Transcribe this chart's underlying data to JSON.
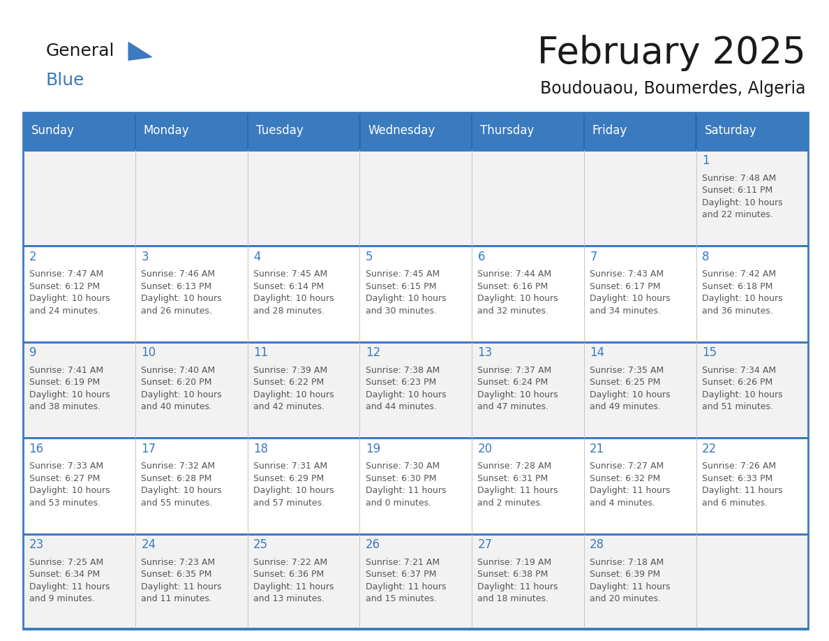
{
  "title": "February 2025",
  "subtitle": "Boudouaou, Boumerdes, Algeria",
  "header_bg_color": "#3a7abf",
  "header_text_color": "#ffffff",
  "cell_bg_even": "#f2f2f2",
  "cell_bg_odd": "#ffffff",
  "day_number_color": "#3a7abf",
  "cell_text_color": "#555555",
  "border_color": "#3a7abf",
  "grid_color": "#c0c0c0",
  "days_of_week": [
    "Sunday",
    "Monday",
    "Tuesday",
    "Wednesday",
    "Thursday",
    "Friday",
    "Saturday"
  ],
  "weeks": [
    [
      {
        "day": null,
        "info": null
      },
      {
        "day": null,
        "info": null
      },
      {
        "day": null,
        "info": null
      },
      {
        "day": null,
        "info": null
      },
      {
        "day": null,
        "info": null
      },
      {
        "day": null,
        "info": null
      },
      {
        "day": 1,
        "info": "Sunrise: 7:48 AM\nSunset: 6:11 PM\nDaylight: 10 hours\nand 22 minutes."
      }
    ],
    [
      {
        "day": 2,
        "info": "Sunrise: 7:47 AM\nSunset: 6:12 PM\nDaylight: 10 hours\nand 24 minutes."
      },
      {
        "day": 3,
        "info": "Sunrise: 7:46 AM\nSunset: 6:13 PM\nDaylight: 10 hours\nand 26 minutes."
      },
      {
        "day": 4,
        "info": "Sunrise: 7:45 AM\nSunset: 6:14 PM\nDaylight: 10 hours\nand 28 minutes."
      },
      {
        "day": 5,
        "info": "Sunrise: 7:45 AM\nSunset: 6:15 PM\nDaylight: 10 hours\nand 30 minutes."
      },
      {
        "day": 6,
        "info": "Sunrise: 7:44 AM\nSunset: 6:16 PM\nDaylight: 10 hours\nand 32 minutes."
      },
      {
        "day": 7,
        "info": "Sunrise: 7:43 AM\nSunset: 6:17 PM\nDaylight: 10 hours\nand 34 minutes."
      },
      {
        "day": 8,
        "info": "Sunrise: 7:42 AM\nSunset: 6:18 PM\nDaylight: 10 hours\nand 36 minutes."
      }
    ],
    [
      {
        "day": 9,
        "info": "Sunrise: 7:41 AM\nSunset: 6:19 PM\nDaylight: 10 hours\nand 38 minutes."
      },
      {
        "day": 10,
        "info": "Sunrise: 7:40 AM\nSunset: 6:20 PM\nDaylight: 10 hours\nand 40 minutes."
      },
      {
        "day": 11,
        "info": "Sunrise: 7:39 AM\nSunset: 6:22 PM\nDaylight: 10 hours\nand 42 minutes."
      },
      {
        "day": 12,
        "info": "Sunrise: 7:38 AM\nSunset: 6:23 PM\nDaylight: 10 hours\nand 44 minutes."
      },
      {
        "day": 13,
        "info": "Sunrise: 7:37 AM\nSunset: 6:24 PM\nDaylight: 10 hours\nand 47 minutes."
      },
      {
        "day": 14,
        "info": "Sunrise: 7:35 AM\nSunset: 6:25 PM\nDaylight: 10 hours\nand 49 minutes."
      },
      {
        "day": 15,
        "info": "Sunrise: 7:34 AM\nSunset: 6:26 PM\nDaylight: 10 hours\nand 51 minutes."
      }
    ],
    [
      {
        "day": 16,
        "info": "Sunrise: 7:33 AM\nSunset: 6:27 PM\nDaylight: 10 hours\nand 53 minutes."
      },
      {
        "day": 17,
        "info": "Sunrise: 7:32 AM\nSunset: 6:28 PM\nDaylight: 10 hours\nand 55 minutes."
      },
      {
        "day": 18,
        "info": "Sunrise: 7:31 AM\nSunset: 6:29 PM\nDaylight: 10 hours\nand 57 minutes."
      },
      {
        "day": 19,
        "info": "Sunrise: 7:30 AM\nSunset: 6:30 PM\nDaylight: 11 hours\nand 0 minutes."
      },
      {
        "day": 20,
        "info": "Sunrise: 7:28 AM\nSunset: 6:31 PM\nDaylight: 11 hours\nand 2 minutes."
      },
      {
        "day": 21,
        "info": "Sunrise: 7:27 AM\nSunset: 6:32 PM\nDaylight: 11 hours\nand 4 minutes."
      },
      {
        "day": 22,
        "info": "Sunrise: 7:26 AM\nSunset: 6:33 PM\nDaylight: 11 hours\nand 6 minutes."
      }
    ],
    [
      {
        "day": 23,
        "info": "Sunrise: 7:25 AM\nSunset: 6:34 PM\nDaylight: 11 hours\nand 9 minutes."
      },
      {
        "day": 24,
        "info": "Sunrise: 7:23 AM\nSunset: 6:35 PM\nDaylight: 11 hours\nand 11 minutes."
      },
      {
        "day": 25,
        "info": "Sunrise: 7:22 AM\nSunset: 6:36 PM\nDaylight: 11 hours\nand 13 minutes."
      },
      {
        "day": 26,
        "info": "Sunrise: 7:21 AM\nSunset: 6:37 PM\nDaylight: 11 hours\nand 15 minutes."
      },
      {
        "day": 27,
        "info": "Sunrise: 7:19 AM\nSunset: 6:38 PM\nDaylight: 11 hours\nand 18 minutes."
      },
      {
        "day": 28,
        "info": "Sunrise: 7:18 AM\nSunset: 6:39 PM\nDaylight: 11 hours\nand 20 minutes."
      },
      {
        "day": null,
        "info": null
      }
    ]
  ],
  "logo_general_color": "#1a1a1a",
  "logo_blue_color": "#3a7abf",
  "logo_triangle_color": "#3a7abf",
  "title_fontsize": 38,
  "subtitle_fontsize": 17,
  "header_fontsize": 12,
  "day_num_fontsize": 12,
  "cell_text_fontsize": 9
}
